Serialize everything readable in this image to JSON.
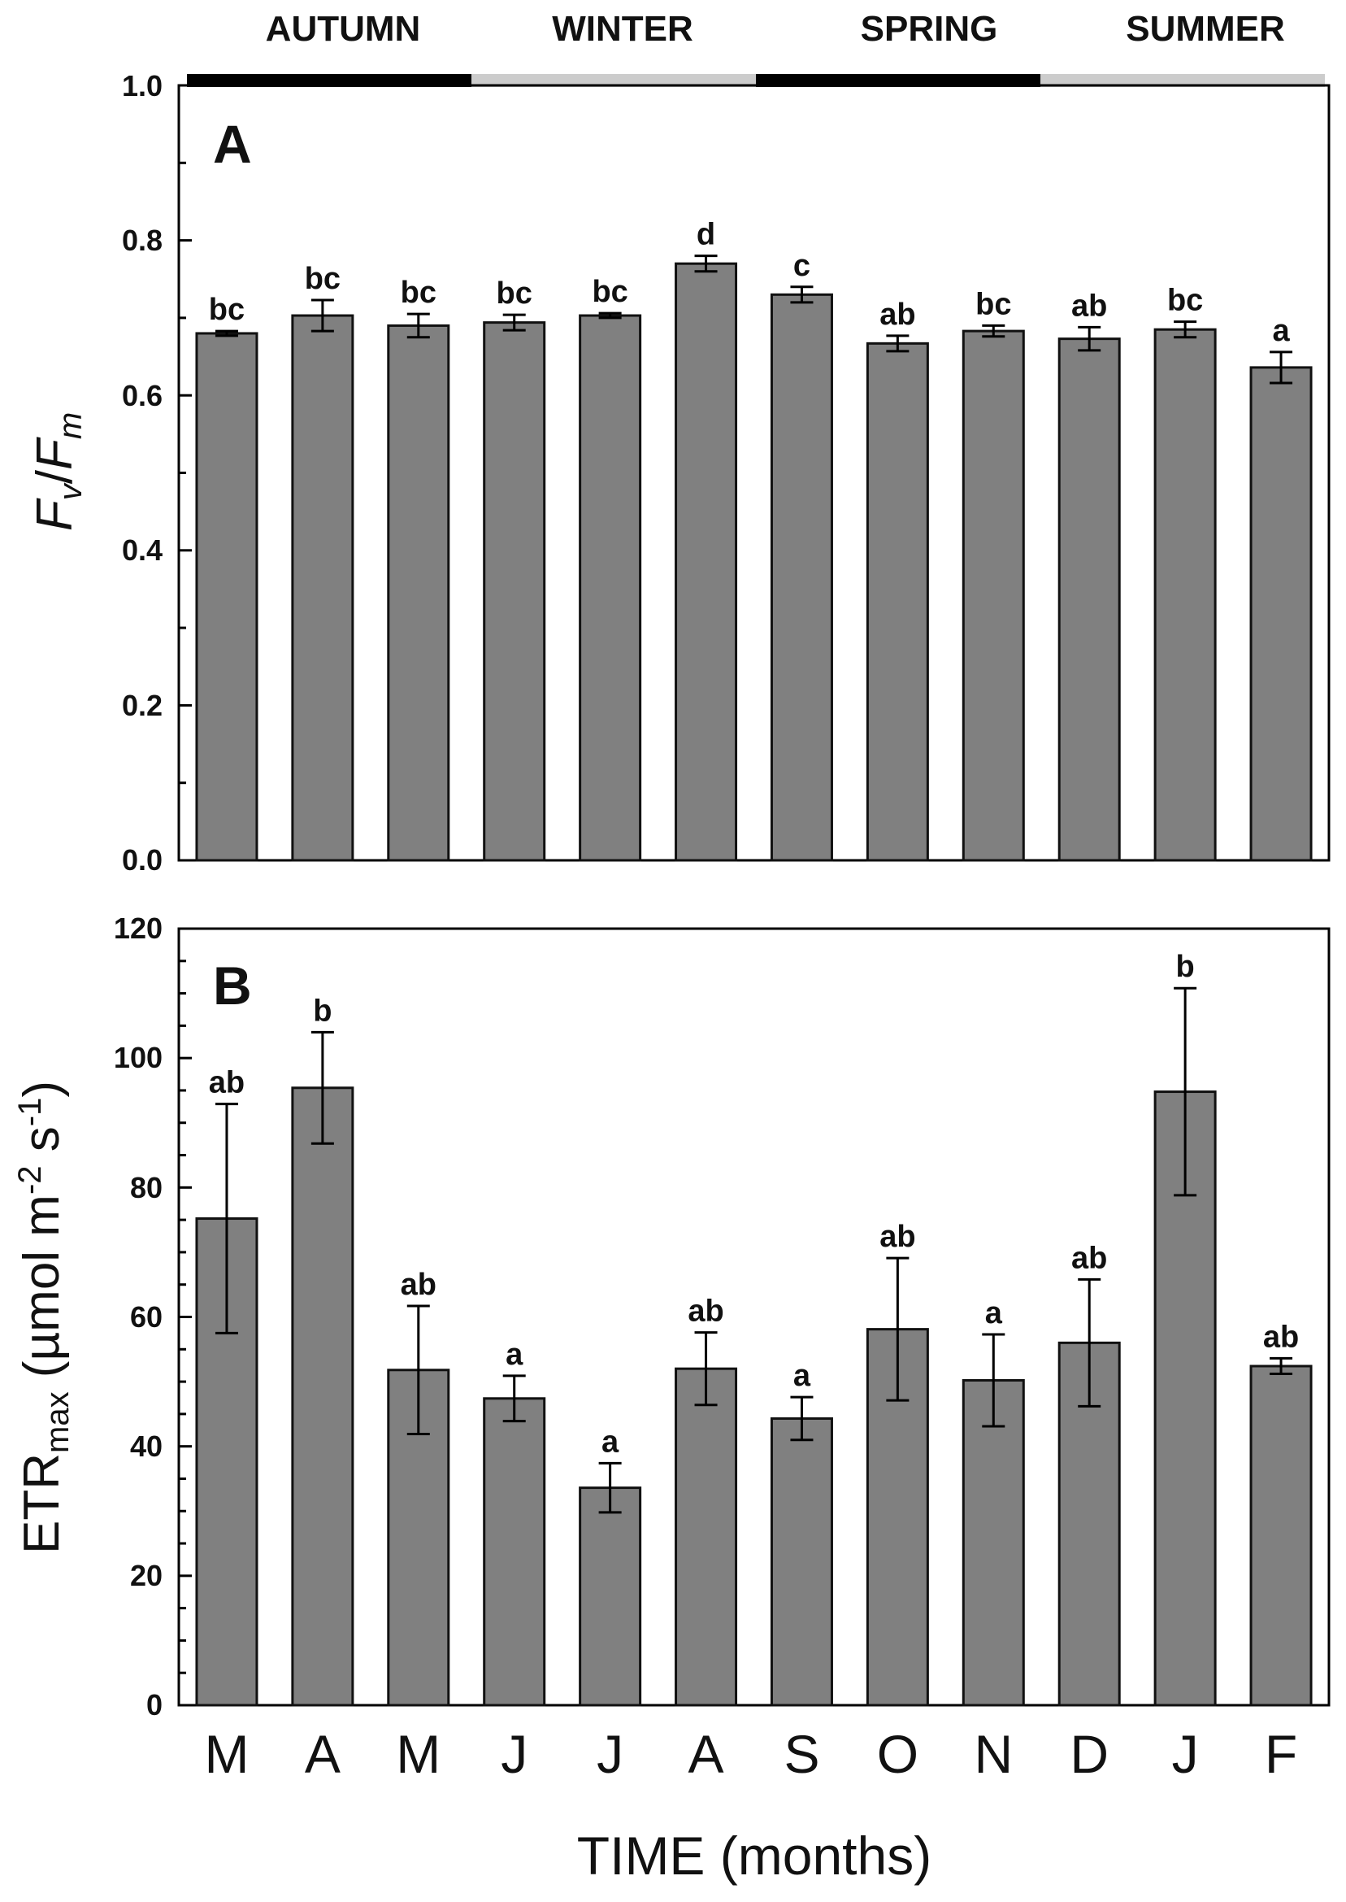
{
  "chart_data": [
    {
      "type": "bar",
      "panel_label": "A",
      "seasons": [
        {
          "name": "AUTUMN",
          "months": 3,
          "color": "#000000"
        },
        {
          "name": "WINTER",
          "months": 3,
          "color": "#cccccc"
        },
        {
          "name": "SPRING",
          "months": 3,
          "color": "#000000"
        },
        {
          "name": "SUMMER",
          "months": 3,
          "color": "#cccccc"
        }
      ],
      "ylabel": {
        "F": "F",
        "v": "v",
        "slash": "/",
        "F2": "F",
        "m": "m"
      },
      "ylim": [
        0,
        1.0
      ],
      "yticks": [
        "0.0",
        "0.2",
        "0.4",
        "0.6",
        "0.8",
        "1.0"
      ],
      "values": [
        0.68,
        0.703,
        0.69,
        0.694,
        0.703,
        0.77,
        0.73,
        0.667,
        0.683,
        0.673,
        0.685,
        0.636
      ],
      "errors": [
        0.003,
        0.02,
        0.015,
        0.01,
        0.003,
        0.01,
        0.01,
        0.01,
        0.007,
        0.015,
        0.01,
        0.02
      ],
      "significance": [
        "bc",
        "bc",
        "bc",
        "bc",
        "bc",
        "d",
        "c",
        "ab",
        "bc",
        "ab",
        "bc",
        "a"
      ],
      "bar_color": "#808080"
    },
    {
      "type": "bar",
      "panel_label": "B",
      "categories": [
        "M",
        "A",
        "M",
        "J",
        "J",
        "A",
        "S",
        "O",
        "N",
        "D",
        "J",
        "F"
      ],
      "ylabel": {
        "main": "ETR",
        "sub": "max",
        "units_a": " (µmol m",
        "sup1": "-2",
        "units_b": " s",
        "sup2": "-1",
        "close": ")"
      },
      "xlabel": "TIME (months)",
      "ylim": [
        0,
        120
      ],
      "yticks": [
        "0",
        "20",
        "40",
        "60",
        "80",
        "100",
        "120"
      ],
      "values": [
        75.2,
        95.4,
        51.8,
        47.4,
        33.6,
        52.0,
        44.3,
        58.1,
        50.2,
        56.0,
        94.8,
        52.4
      ],
      "errors": [
        17.7,
        8.6,
        9.9,
        3.5,
        3.8,
        5.6,
        3.3,
        11.0,
        7.1,
        9.8,
        16.0,
        1.2
      ],
      "significance": [
        "ab",
        "b",
        "ab",
        "a",
        "a",
        "ab",
        "a",
        "ab",
        "a",
        "ab",
        "b",
        "ab"
      ],
      "bar_color": "#808080"
    }
  ]
}
